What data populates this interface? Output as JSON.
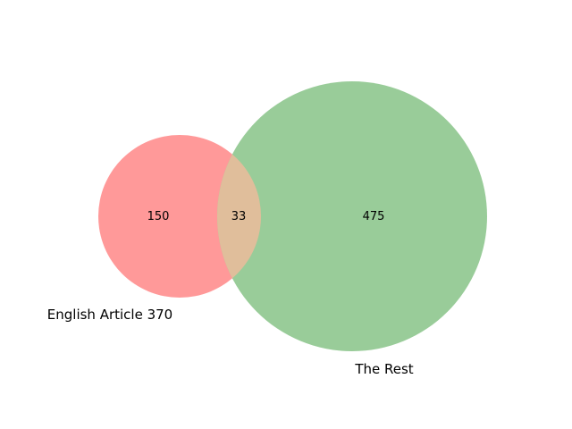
{
  "venn": {
    "sets": [
      {
        "name": "English Article 370",
        "color": "#ff9999"
      },
      {
        "name": "The Rest",
        "color": "#99cc99"
      }
    ],
    "overlap_color": "#e0be9b",
    "regions": {
      "left_only": "150",
      "intersection": "33",
      "right_only": "475"
    }
  }
}
